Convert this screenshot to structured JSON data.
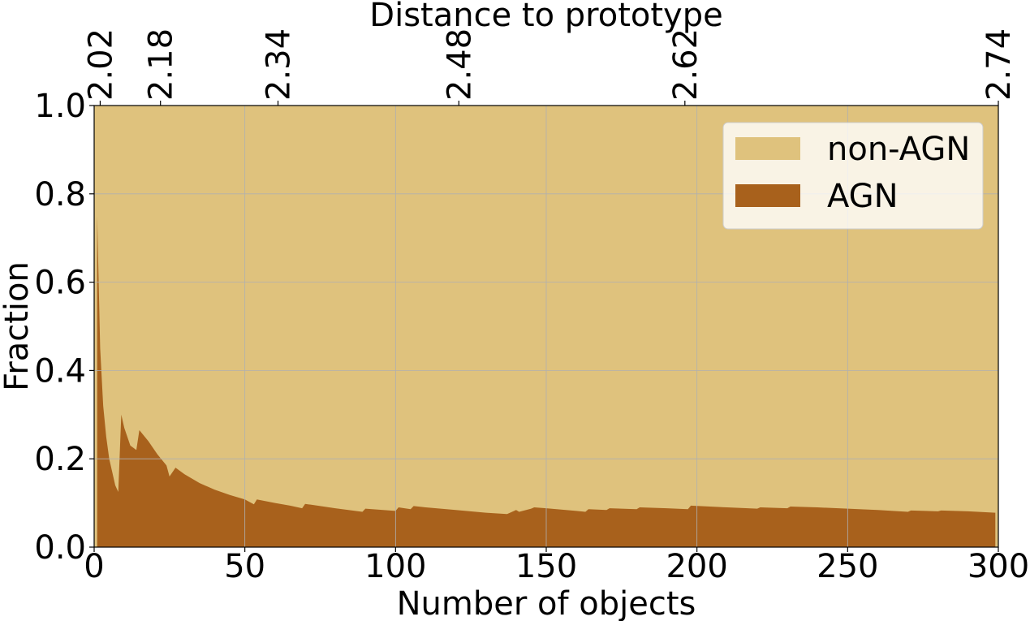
{
  "chart_data": {
    "type": "area",
    "title": "",
    "xlabel": "Number of objects",
    "ylabel": "Fraction",
    "top_xlabel": "Distance to prototype",
    "xlim": [
      0,
      300
    ],
    "ylim": [
      0,
      1
    ],
    "x_ticks": [
      "0",
      "50",
      "100",
      "150",
      "200",
      "250",
      "300"
    ],
    "y_ticks": [
      "0.0",
      "0.2",
      "0.4",
      "0.6",
      "0.8",
      "1.0"
    ],
    "top_ticks": [
      {
        "x": 2,
        "label": "2.02"
      },
      {
        "x": 22,
        "label": "2.18"
      },
      {
        "x": 61,
        "label": "2.34"
      },
      {
        "x": 121,
        "label": "2.48"
      },
      {
        "x": 196,
        "label": "2.62"
      },
      {
        "x": 300,
        "label": "2.74"
      }
    ],
    "grid": true,
    "legend_position": "top-right",
    "stacked": true,
    "x": [
      1,
      2,
      3,
      4,
      5,
      6,
      7,
      8,
      9,
      10,
      12,
      14,
      15,
      18,
      21,
      24,
      25,
      27,
      30,
      35,
      40,
      45,
      50,
      53,
      54,
      60,
      65,
      69,
      70,
      80,
      89,
      90,
      100,
      101,
      105,
      106,
      110,
      120,
      130,
      137,
      138,
      140,
      141,
      145,
      146,
      150,
      160,
      163,
      164,
      170,
      171,
      180,
      181,
      190,
      197,
      198,
      210,
      220,
      221,
      230,
      231,
      240,
      250,
      260,
      270,
      271,
      280,
      281,
      290,
      299
    ],
    "series": [
      {
        "name": "AGN",
        "color": "#a8611c",
        "values": [
          0.75,
          0.45,
          0.32,
          0.25,
          0.2,
          0.17,
          0.14,
          0.125,
          0.3,
          0.27,
          0.23,
          0.22,
          0.265,
          0.24,
          0.21,
          0.185,
          0.16,
          0.18,
          0.165,
          0.145,
          0.13,
          0.118,
          0.108,
          0.097,
          0.108,
          0.1,
          0.094,
          0.088,
          0.098,
          0.088,
          0.08,
          0.087,
          0.082,
          0.09,
          0.086,
          0.093,
          0.09,
          0.084,
          0.078,
          0.075,
          0.078,
          0.084,
          0.08,
          0.087,
          0.09,
          0.088,
          0.082,
          0.08,
          0.086,
          0.084,
          0.088,
          0.086,
          0.09,
          0.088,
          0.086,
          0.094,
          0.09,
          0.087,
          0.09,
          0.088,
          0.092,
          0.09,
          0.087,
          0.084,
          0.08,
          0.083,
          0.081,
          0.083,
          0.081,
          0.078
        ]
      },
      {
        "name": "non-AGN",
        "color": "#dfc27d",
        "values": "remainder to 1.0"
      }
    ]
  }
}
